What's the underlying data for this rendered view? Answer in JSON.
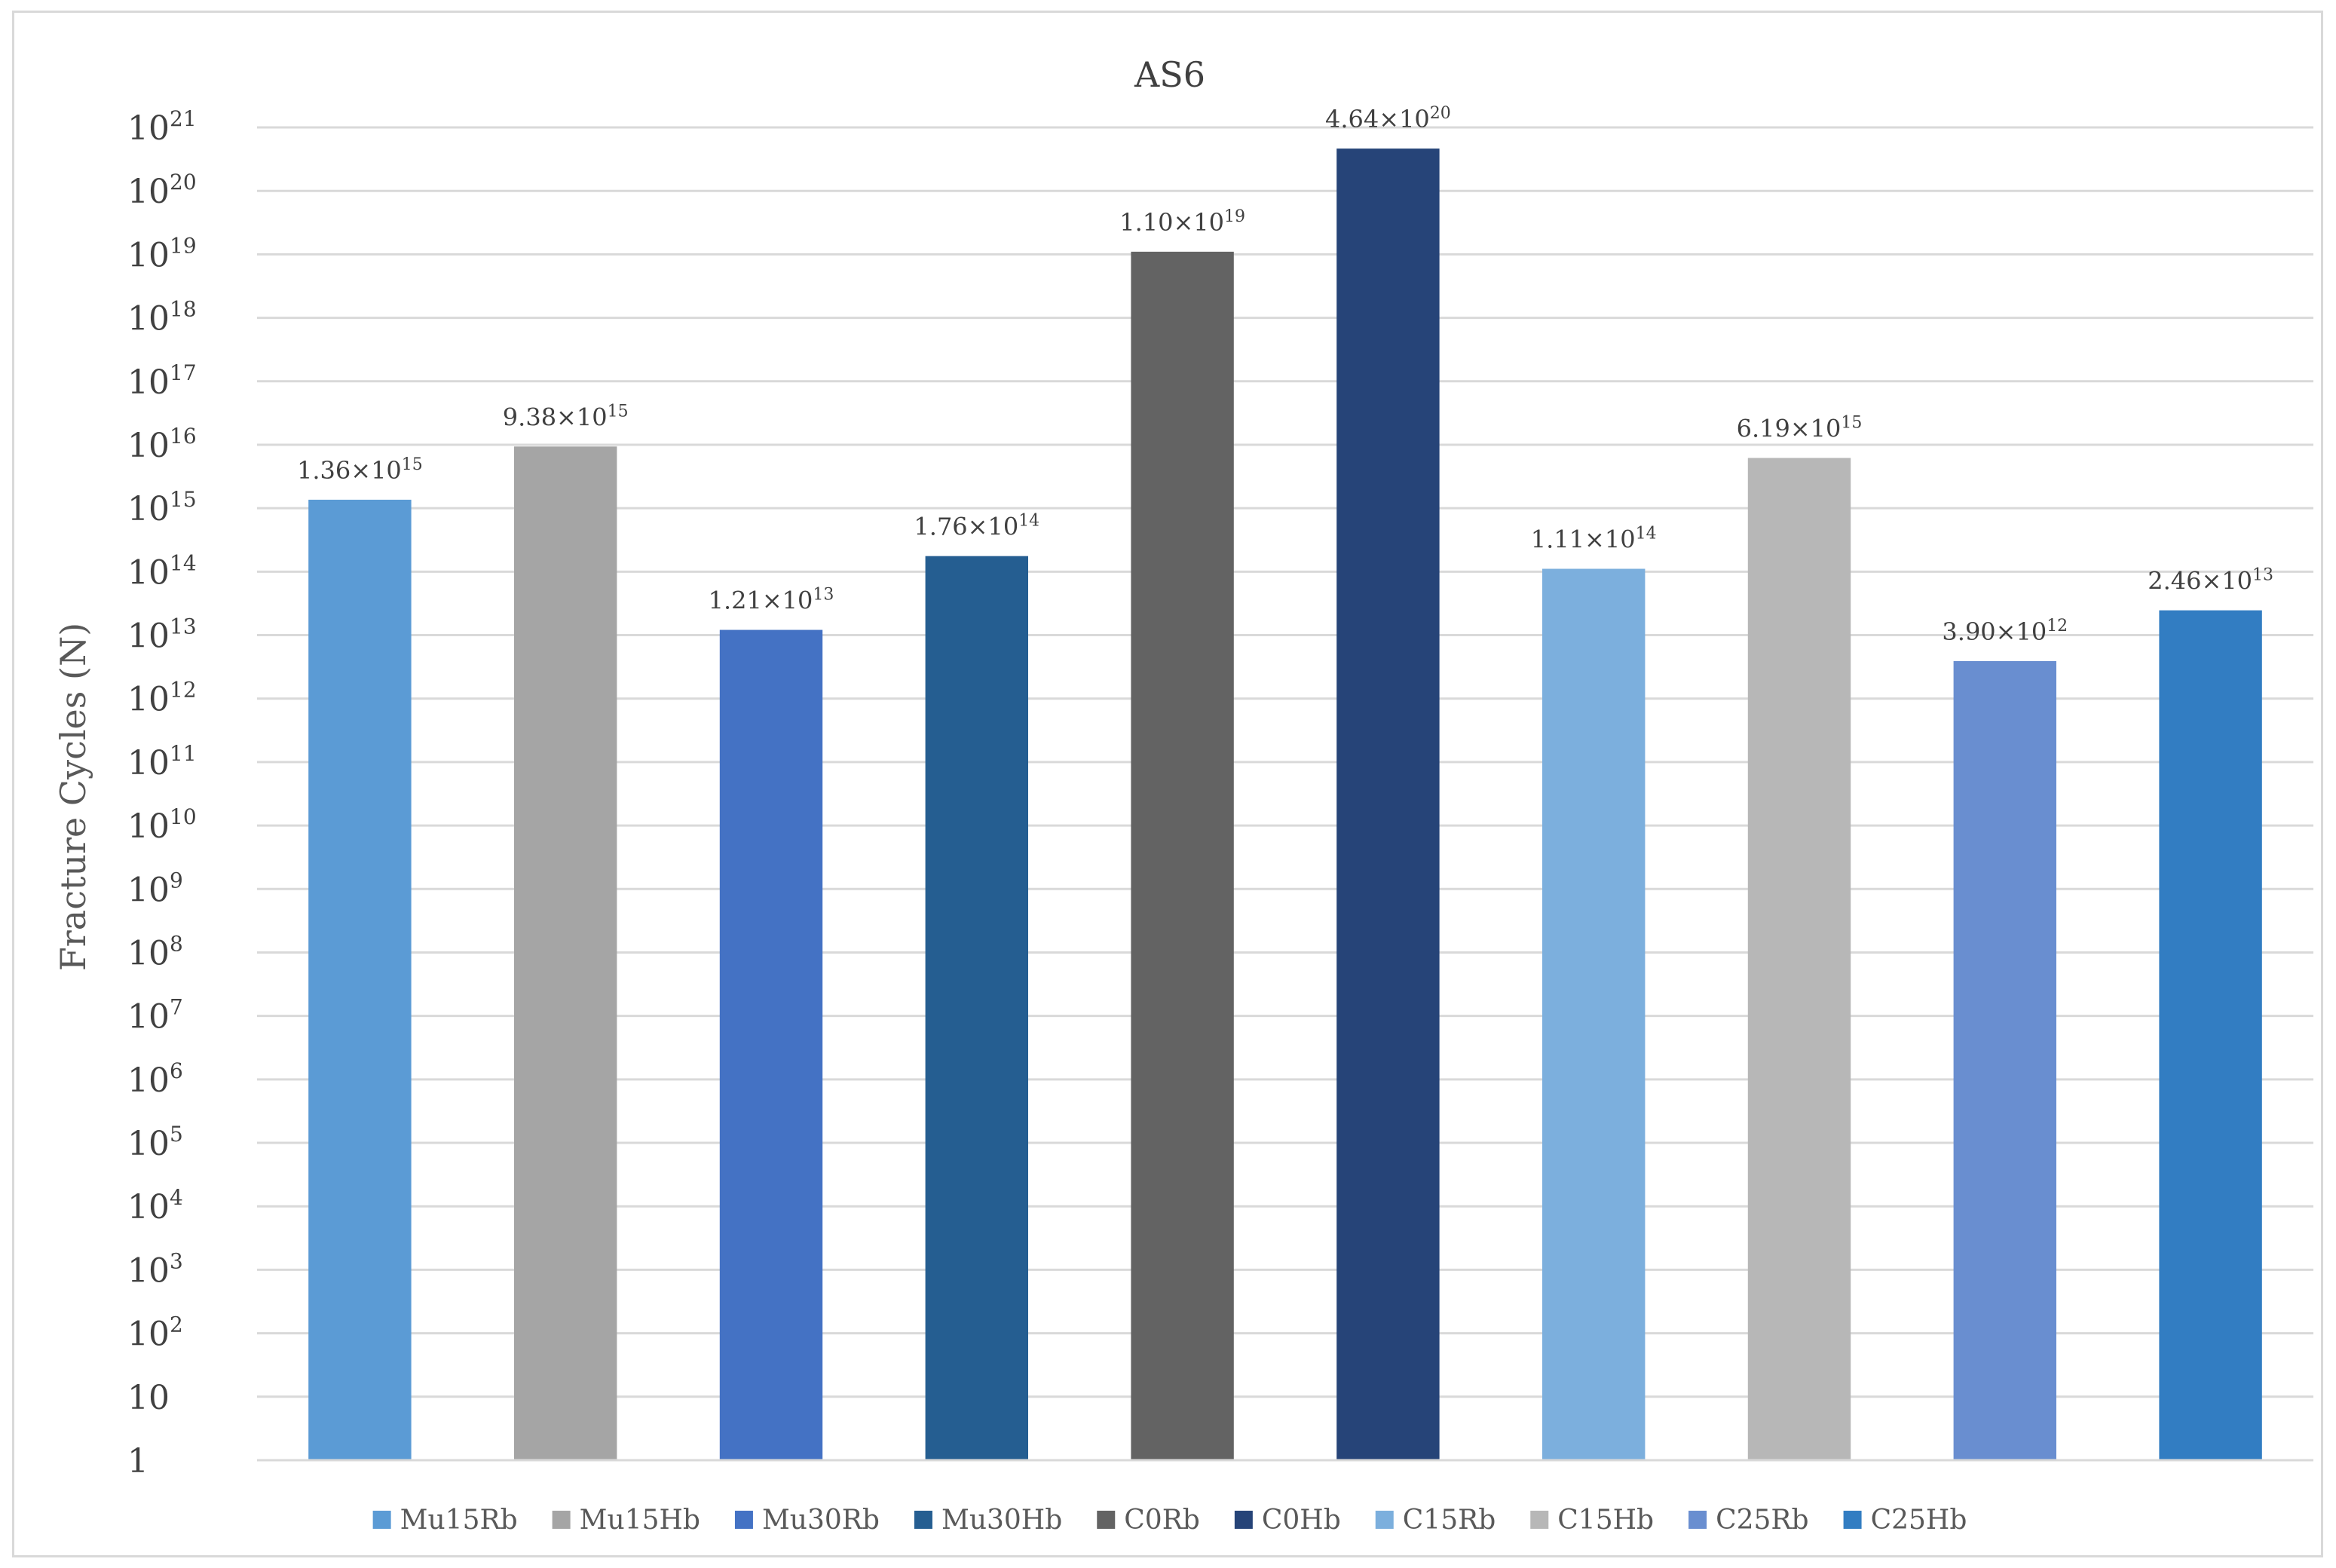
{
  "chart_data": {
    "type": "bar",
    "title": "AS6",
    "xlabel": "",
    "ylabel": "Fracture Cycles (N)",
    "y_scale": "log",
    "ylim": [
      1,
      1e+21
    ],
    "y_ticks": [
      {
        "value": 1,
        "base": "1",
        "exp": ""
      },
      {
        "value": 10,
        "base": "10",
        "exp": ""
      },
      {
        "value": 100,
        "base": "10",
        "exp": "2"
      },
      {
        "value": 1000,
        "base": "10",
        "exp": "3"
      },
      {
        "value": 10000,
        "base": "10",
        "exp": "4"
      },
      {
        "value": 100000,
        "base": "10",
        "exp": "5"
      },
      {
        "value": 1000000,
        "base": "10",
        "exp": "6"
      },
      {
        "value": 10000000,
        "base": "10",
        "exp": "7"
      },
      {
        "value": 100000000,
        "base": "10",
        "exp": "8"
      },
      {
        "value": 1000000000,
        "base": "10",
        "exp": "9"
      },
      {
        "value": 10000000000,
        "base": "10",
        "exp": "10"
      },
      {
        "value": 100000000000,
        "base": "10",
        "exp": "11"
      },
      {
        "value": 1000000000000,
        "base": "10",
        "exp": "12"
      },
      {
        "value": 10000000000000,
        "base": "10",
        "exp": "13"
      },
      {
        "value": 100000000000000,
        "base": "10",
        "exp": "14"
      },
      {
        "value": 1000000000000000.0,
        "base": "10",
        "exp": "15"
      },
      {
        "value": 1e+16,
        "base": "10",
        "exp": "16"
      },
      {
        "value": 1e+17,
        "base": "10",
        "exp": "17"
      },
      {
        "value": 1e+18,
        "base": "10",
        "exp": "18"
      },
      {
        "value": 1e+19,
        "base": "10",
        "exp": "19"
      },
      {
        "value": 1e+20,
        "base": "10",
        "exp": "20"
      },
      {
        "value": 1e+21,
        "base": "10",
        "exp": "21"
      }
    ],
    "grid": true,
    "legend_position": "bottom",
    "series": [
      {
        "name": "Mu15Rb",
        "value": 1360000000000000.0,
        "label_mantissa": "1.36×10",
        "label_exp": "15",
        "color": "#5b9bd5"
      },
      {
        "name": "Mu15Hb",
        "value": 9380000000000000.0,
        "label_mantissa": "9.38×10",
        "label_exp": "15",
        "color": "#a5a5a5"
      },
      {
        "name": "Mu30Rb",
        "value": 12100000000000.0,
        "label_mantissa": "1.21×10",
        "label_exp": "13",
        "color": "#4472c4"
      },
      {
        "name": "Mu30Hb",
        "value": 176000000000000.0,
        "label_mantissa": "1.76×10",
        "label_exp": "14",
        "color": "#255e91"
      },
      {
        "name": "C0Rb",
        "value": 1.1e+19,
        "label_mantissa": "1.10×10",
        "label_exp": "19",
        "color": "#636363"
      },
      {
        "name": "C0Hb",
        "value": 4.64e+20,
        "label_mantissa": "4.64×10",
        "label_exp": "20",
        "color": "#264478"
      },
      {
        "name": "C15Rb",
        "value": 111000000000000.0,
        "label_mantissa": "1.11×10",
        "label_exp": "14",
        "color": "#7cafdd"
      },
      {
        "name": "C15Hb",
        "value": 6190000000000000.0,
        "label_mantissa": "6.19×10",
        "label_exp": "15",
        "color": "#b7b7b7"
      },
      {
        "name": "C25Rb",
        "value": 3900000000000.0,
        "label_mantissa": "3.90×10",
        "label_exp": "12",
        "color": "#698ed0"
      },
      {
        "name": "C25Hb",
        "value": 24600000000000.0,
        "label_mantissa": "2.46×10",
        "label_exp": "13",
        "color": "#327dc2"
      }
    ]
  }
}
